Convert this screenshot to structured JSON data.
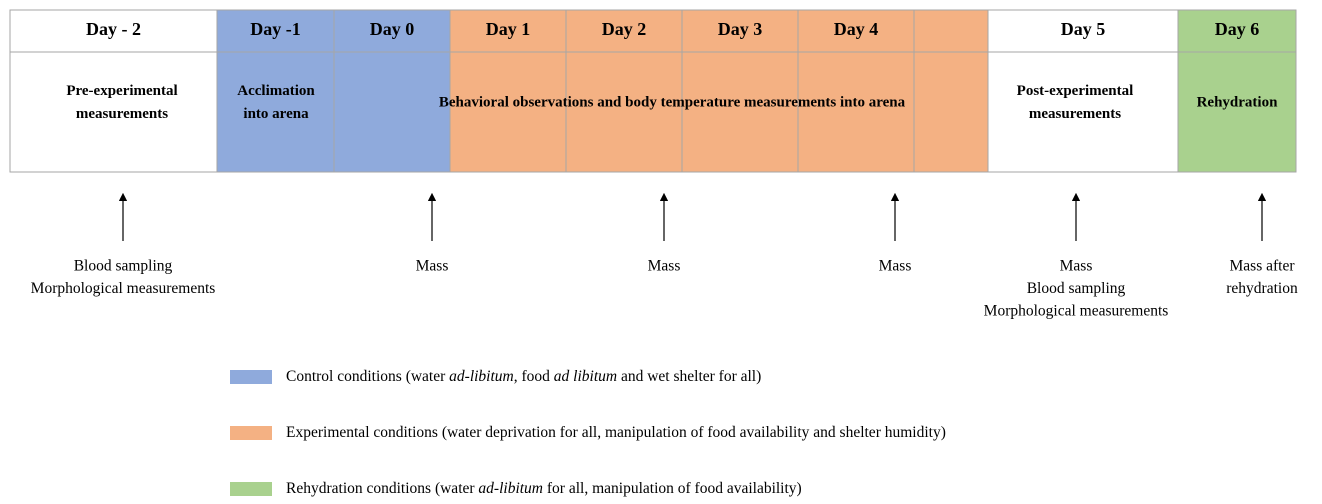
{
  "header": {
    "days": [
      {
        "label": "Day - 2",
        "color": "#ffffff"
      },
      {
        "label": "Day -1",
        "color": "#8faadc"
      },
      {
        "label": "Day 0",
        "color": "#8faadc"
      },
      {
        "label": "Day 1",
        "color": "#f4b183"
      },
      {
        "label": "Day 2",
        "color": "#f4b183"
      },
      {
        "label": "Day 3",
        "color": "#f4b183"
      },
      {
        "label": "Day 4",
        "color": "#f4b183"
      },
      {
        "label": null,
        "color": "#f4b183"
      },
      {
        "label": "Day 5",
        "color": "#ffffff"
      },
      {
        "label": "Day 6",
        "color": "#a9d18e"
      }
    ]
  },
  "phases": [
    {
      "lines": [
        "Pre-experimental",
        "measurements"
      ]
    },
    {
      "lines": [
        "Acclimation",
        "into arena"
      ]
    },
    {
      "lines": [
        "Behavioral observations and body temperature measurements into arena"
      ]
    },
    {
      "lines": [
        "Post-experimental",
        "measurements"
      ]
    },
    {
      "lines": [
        "Rehydration"
      ]
    }
  ],
  "events": [
    {
      "lines": [
        "Blood sampling",
        "Morphological measurements"
      ]
    },
    {
      "lines": [
        "Mass"
      ]
    },
    {
      "lines": [
        "Mass"
      ]
    },
    {
      "lines": [
        "Mass"
      ]
    },
    {
      "lines": [
        "Mass",
        "Blood sampling",
        "Morphological measurements"
      ]
    },
    {
      "lines": [
        "Mass after",
        "rehydration"
      ]
    }
  ],
  "legend": [
    {
      "color": "#8faadc",
      "parts": [
        {
          "text": "Control conditions (water ",
          "italic": false
        },
        {
          "text": "ad-libitum",
          "italic": true
        },
        {
          "text": ", food ",
          "italic": false
        },
        {
          "text": "ad libitum",
          "italic": true
        },
        {
          "text": " and wet shelter for all)",
          "italic": false
        }
      ]
    },
    {
      "color": "#f4b183",
      "parts": [
        {
          "text": "Experimental conditions (water deprivation for all, manipulation of food availability and shelter humidity)",
          "italic": false
        }
      ]
    },
    {
      "color": "#a9d18e",
      "parts": [
        {
          "text": "Rehydration conditions (water ",
          "italic": false
        },
        {
          "text": "ad-libitum",
          "italic": true
        },
        {
          "text": " for all, manipulation of food availability)",
          "italic": false
        }
      ]
    }
  ]
}
